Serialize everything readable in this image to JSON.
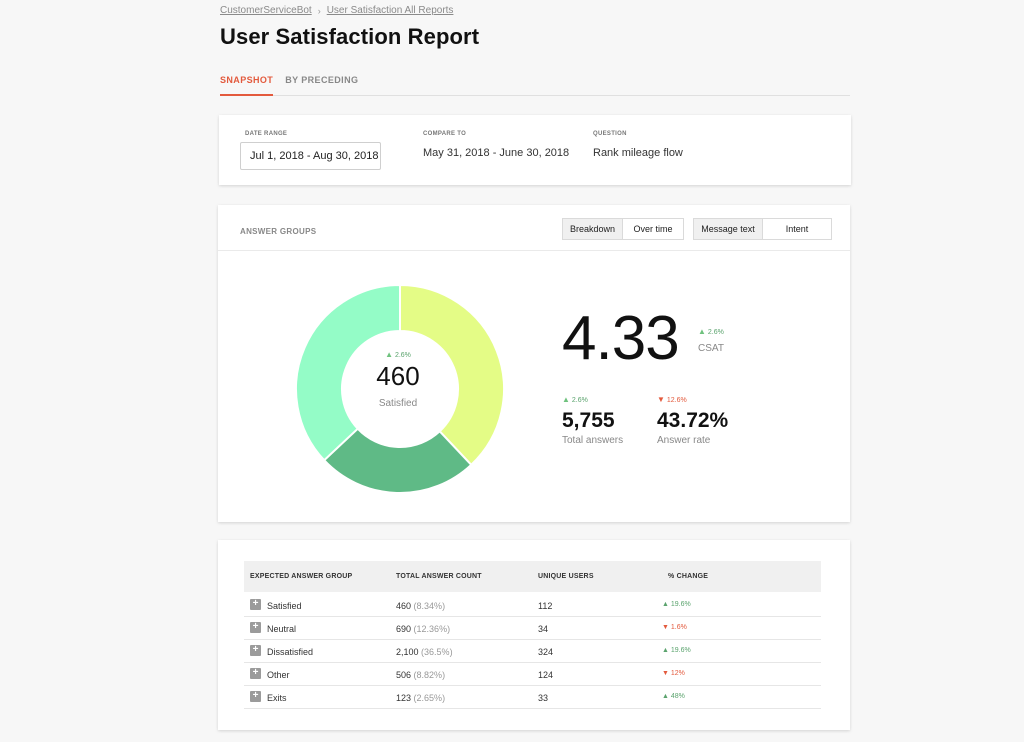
{
  "breadcrumb": {
    "parent": "CustomerServiceBot",
    "current": "User Satisfaction All Reports"
  },
  "page_title": "User Satisfaction Report",
  "tabs": [
    {
      "label": "SNAPSHOT",
      "active": true
    },
    {
      "label": "BY PRECEDING",
      "active": false
    }
  ],
  "filters": {
    "date_range": {
      "label": "DATE RANGE",
      "value": "Jul 1, 2018 - Aug 30, 2018"
    },
    "compare_to": {
      "label": "COMPARE TO",
      "value": "May 31, 2018 - June 30, 2018"
    },
    "question": {
      "label": "QUESTION",
      "value": "Rank mileage flow"
    }
  },
  "answer_groups": {
    "title": "ANSWER GROUPS",
    "view_toggle": [
      "Breakdown",
      "Over time"
    ],
    "view_selected": "Breakdown",
    "type_toggle": [
      "Message text",
      "Intent"
    ],
    "type_selected": "Message text",
    "donut": {
      "center_change": "2.6%",
      "center_value": "460",
      "center_label": "Satisfied",
      "segments": [
        {
          "name": "Satisfied-segment",
          "value": 0.38,
          "color": "#e4fc86"
        },
        {
          "name": "Neutral-segment",
          "value": 0.25,
          "color": "#5fba86"
        },
        {
          "name": "Dissatisfied-segment",
          "value": 0.37,
          "color": "#94fcc7"
        }
      ]
    },
    "csat": {
      "value": "4.33",
      "change": "2.6%",
      "label": "CSAT"
    },
    "total_answers": {
      "value": "5,755",
      "change": "2.6%",
      "label": "Total answers"
    },
    "answer_rate": {
      "value": "43.72%",
      "change": "12.6%",
      "label": "Answer rate"
    }
  },
  "table": {
    "headers": [
      "EXPECTED ANSWER GROUP",
      "TOTAL ANSWER COUNT",
      "UNIQUE USERS",
      "% CHANGE"
    ],
    "rows": [
      {
        "group": "Satisfied",
        "count": "460",
        "pct": "(8.34%)",
        "users": "112",
        "change": "19.6%",
        "dir": "up"
      },
      {
        "group": "Neutral",
        "count": "690",
        "pct": "(12.36%)",
        "users": "34",
        "change": "1.6%",
        "dir": "down"
      },
      {
        "group": "Dissatisfied",
        "count": "2,100",
        "pct": "(36.5%)",
        "users": "324",
        "change": "19.6%",
        "dir": "up"
      },
      {
        "group": "Other",
        "count": "506",
        "pct": "(8.82%)",
        "users": "124",
        "change": "12%",
        "dir": "down"
      },
      {
        "group": "Exits",
        "count": "123",
        "pct": "(2.65%)",
        "users": "33",
        "change": "48%",
        "dir": "up"
      }
    ]
  },
  "colors": {
    "accent": "#e35a3d",
    "positive": "#6fc27e",
    "negative": "#e35a3d"
  }
}
